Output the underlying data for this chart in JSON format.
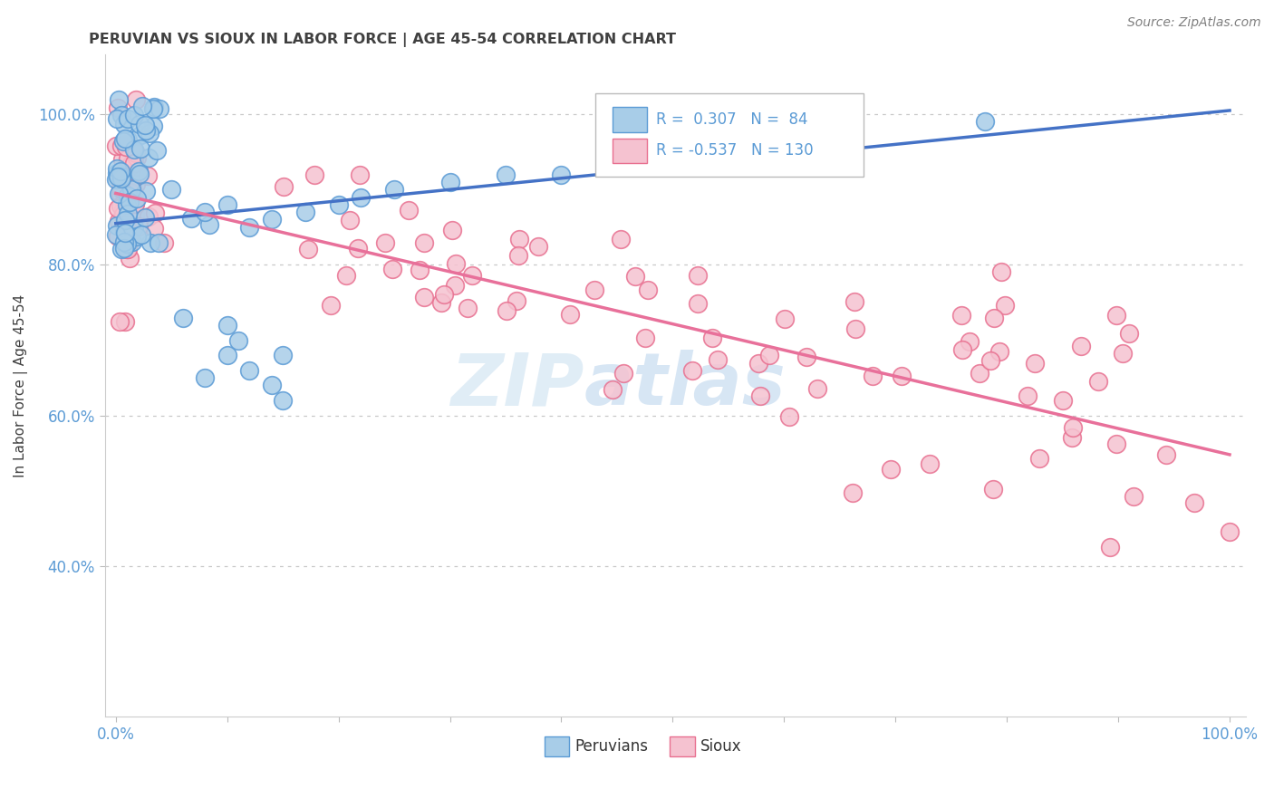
{
  "title": "PERUVIAN VS SIOUX IN LABOR FORCE | AGE 45-54 CORRELATION CHART",
  "source": "Source: ZipAtlas.com",
  "ylabel": "In Labor Force | Age 45-54",
  "xlim": [
    0.0,
    1.0
  ],
  "ylim": [
    0.2,
    1.08
  ],
  "yticks": [
    0.4,
    0.6,
    0.8,
    1.0
  ],
  "ytick_labels": [
    "40.0%",
    "60.0%",
    "80.0%",
    "100.0%"
  ],
  "xticks": [
    0.0,
    0.1,
    0.2,
    0.3,
    0.4,
    0.5,
    0.6,
    0.7,
    0.8,
    0.9,
    1.0
  ],
  "xtick_labels": [
    "0.0%",
    "",
    "",
    "",
    "",
    "",
    "",
    "",
    "",
    "",
    "100.0%"
  ],
  "blue_fill": "#a8cde8",
  "blue_edge": "#5b9bd5",
  "pink_fill": "#f5c2d0",
  "pink_edge": "#e87090",
  "blue_line": "#4472c6",
  "pink_line": "#e8709a",
  "legend_r_blue": "0.307",
  "legend_n_blue": "84",
  "legend_r_pink": "-0.537",
  "legend_n_pink": "130",
  "watermark_zip": "ZIP",
  "watermark_atlas": "atlas",
  "title_color": "#404040",
  "source_color": "#808080",
  "axis_label_color": "#404040",
  "tick_color": "#5b9bd5",
  "grid_color": "#c8c8c8",
  "legend_label_blue": "Peruvians",
  "legend_label_pink": "Sioux",
  "blue_trend_x0": 0.0,
  "blue_trend_y0": 0.855,
  "blue_trend_x1": 1.0,
  "blue_trend_y1": 1.005,
  "pink_trend_x0": 0.0,
  "pink_trend_y0": 0.895,
  "pink_trend_x1": 1.0,
  "pink_trend_y1": 0.548
}
